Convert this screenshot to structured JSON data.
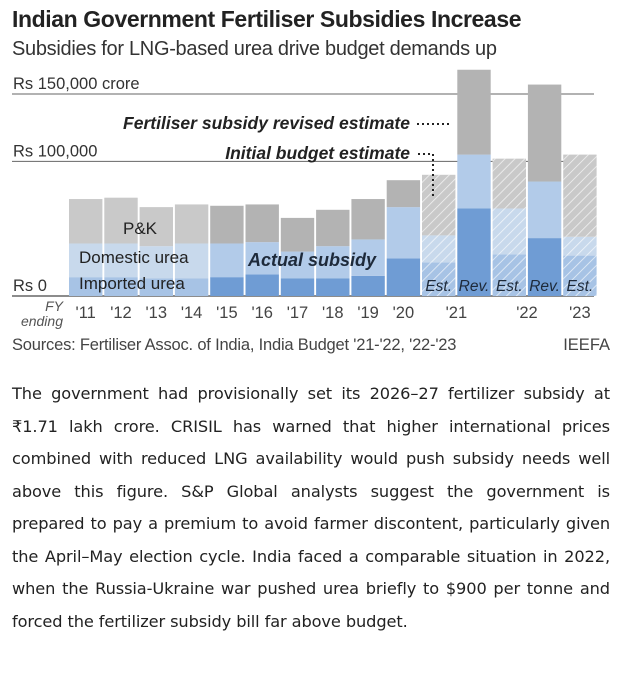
{
  "header": {
    "title": "Indian Government Fertiliser Subsidies Increase",
    "subtitle": "Subsidies for LNG-based urea drive budget demands up"
  },
  "footer": {
    "sources": "Sources: Fertiliser Assoc. of India, India Budget '21-'22, '22-'23",
    "credit": "IEEFA"
  },
  "article": {
    "text": "The government had provisionally set its 2026–27 fertilizer subsidy at ₹1.71 lakh crore. CRISIL has warned that higher international prices combined with reduced LNG availability would push subsidy needs well above this figure. S&P Global analysts suggest the government is prepared to pay a premium to avoid farmer discontent, particularly given the April–May election cycle. India faced a comparable situation in 2022, when the Russia-Ukraine war pushed urea briefly to $900 per tonne and forced the fertilizer subsidy bill far above budget."
  },
  "colors": {
    "pk": "#c9c9c9",
    "domestic": "#c8d9ec",
    "imported": "#a7c3e5",
    "pk_actual": "#b3b3b3",
    "domestic_actual": "#b2cbe9",
    "imported_actual": "#6f9cd4",
    "grid": "#666666"
  },
  "chart_data": {
    "type": "bar",
    "stacked": true,
    "ylim": [
      0,
      150000
    ],
    "y_ticks": [
      {
        "value": 0,
        "label": "Rs 0"
      },
      {
        "value": 100000,
        "label": "Rs 100,000"
      },
      {
        "value": 150000,
        "label": "Rs 150,000 crore"
      }
    ],
    "x_axis_label": "FY ending",
    "x_axis_label_parts": [
      "FY",
      "ending"
    ],
    "series_labels": [
      "P&K",
      "Domestic urea",
      "Imported urea"
    ],
    "actual_label": "Actual subsidy",
    "estimate_labels": [
      "Fertiliser subsidy revised estimate",
      "Initial budget estimate"
    ],
    "bars": [
      {
        "x": "'11",
        "imported": 14000,
        "domestic": 25000,
        "pk": 33000
      },
      {
        "x": "'12",
        "imported": 14000,
        "domestic": 25000,
        "pk": 34000
      },
      {
        "x": "'13",
        "imported": 13000,
        "domestic": 24000,
        "pk": 29000
      },
      {
        "x": "'14",
        "imported": 13000,
        "domestic": 26000,
        "pk": 29000
      },
      {
        "x": "'15",
        "imported": 14000,
        "domestic": 25000,
        "pk": 28000,
        "actual": true
      },
      {
        "x": "'16",
        "imported": 16000,
        "domestic": 24000,
        "pk": 28000,
        "actual": true
      },
      {
        "x": "'17",
        "imported": 13000,
        "domestic": 20000,
        "pk": 25000,
        "actual": true
      },
      {
        "x": "'18",
        "imported": 13000,
        "domestic": 24000,
        "pk": 27000,
        "actual": true
      },
      {
        "x": "'19",
        "imported": 15000,
        "domestic": 27000,
        "pk": 30000,
        "actual": true
      },
      {
        "x": "'20",
        "imported": 28000,
        "domestic": 38000,
        "pk": 20000,
        "actual": true
      },
      {
        "x": "'21",
        "label": "Est.",
        "imported": 25000,
        "domestic": 20000,
        "pk": 45000,
        "hatched": true
      },
      {
        "x": "'21",
        "label": "Rev.",
        "imported": 65000,
        "domestic": 40000,
        "pk": 63000,
        "actual": true
      },
      {
        "x": "'22",
        "label": "Est.",
        "imported": 31000,
        "domestic": 34000,
        "pk": 37000,
        "hatched": true
      },
      {
        "x": "'22",
        "label": "Rev.",
        "imported": 43000,
        "domestic": 42000,
        "pk": 72000,
        "actual": true
      },
      {
        "x": "'23",
        "label": "Est.",
        "imported": 30000,
        "domestic": 14000,
        "pk": 61000,
        "hatched": true
      }
    ],
    "x_tick_labels": [
      "'11",
      "'12",
      "'13",
      "'14",
      "'15",
      "'16",
      "'17",
      "'18",
      "'19",
      "'20",
      "'21",
      "'22",
      "'23"
    ]
  }
}
